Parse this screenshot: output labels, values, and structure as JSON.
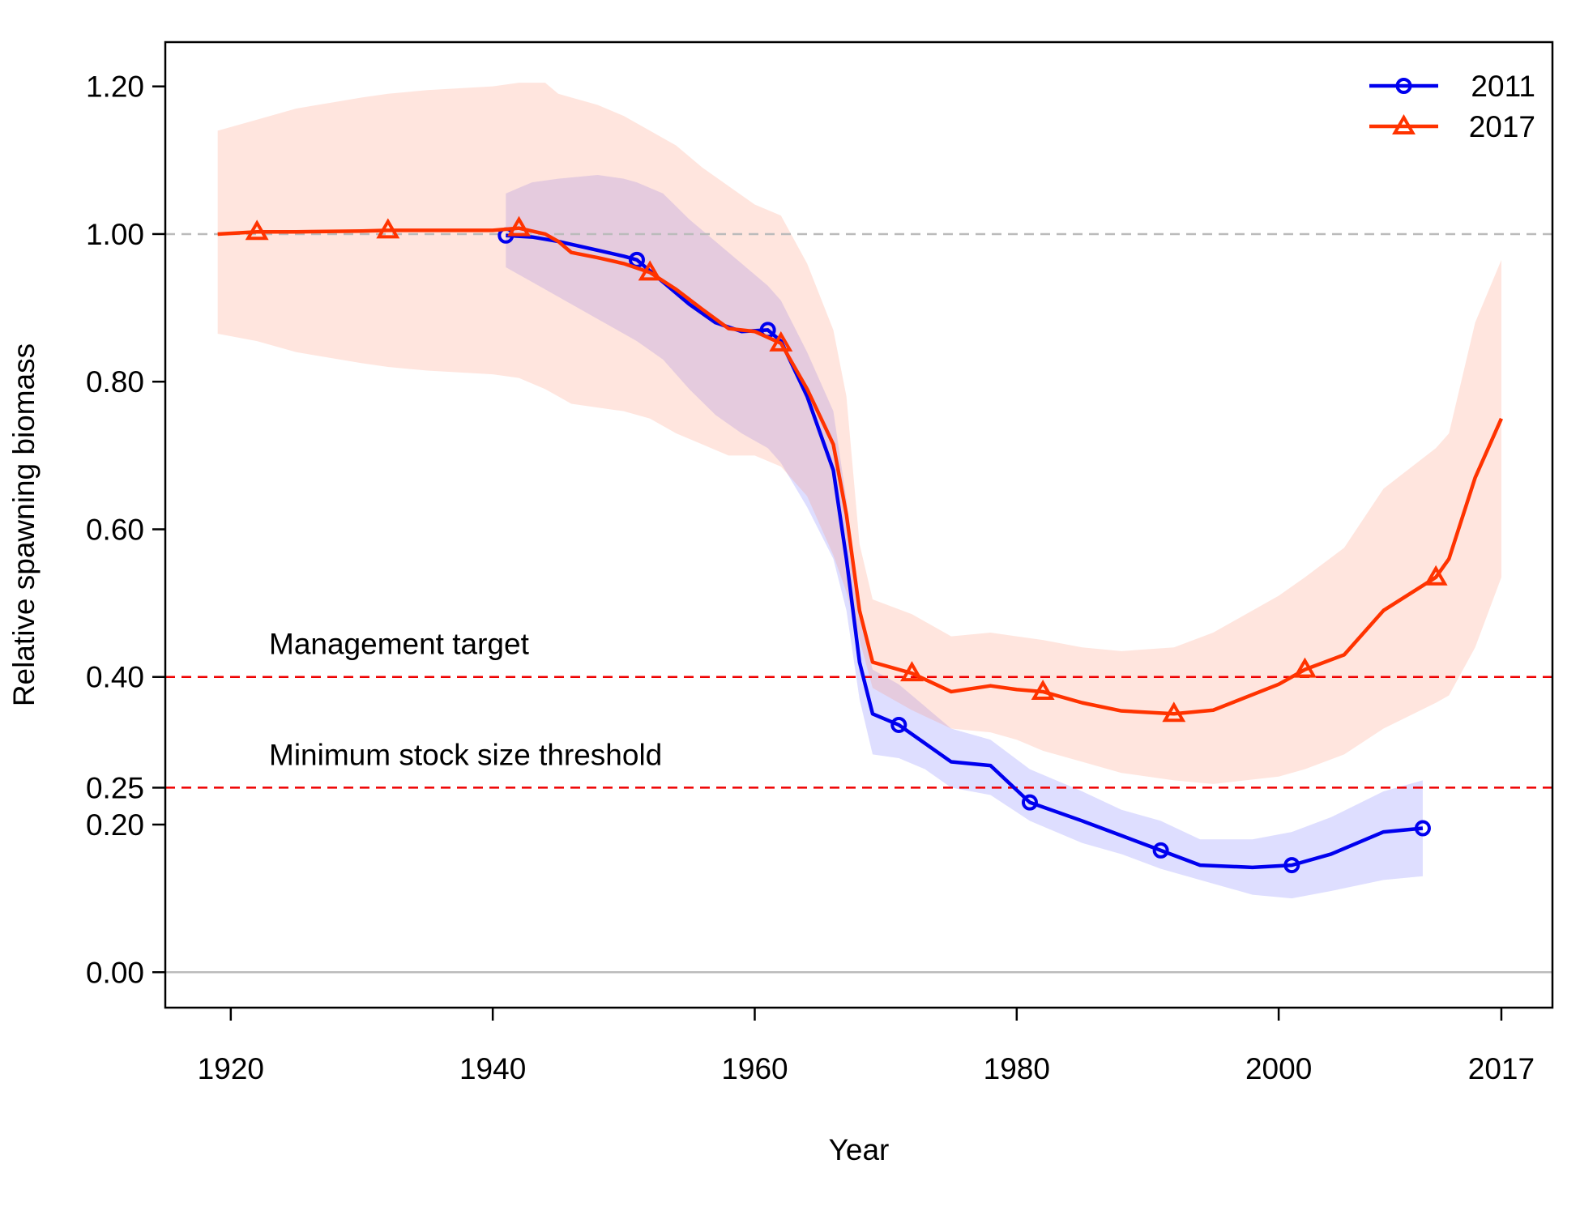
{
  "chart_data": {
    "type": "line",
    "x_label": "Year",
    "y_label": "Relative spawning biomass",
    "xlim": [
      1915,
      2020.9
    ],
    "ylim": [
      -0.048,
      1.26
    ],
    "xticks": [
      1920,
      1940,
      1960,
      1980,
      2000,
      2017
    ],
    "yticks": [
      {
        "value": 0,
        "label": "0.00"
      },
      {
        "value": 0.2,
        "label": "0.20"
      },
      {
        "value": 0.25,
        "label": "0.25"
      },
      {
        "value": 0.4,
        "label": "0.40"
      },
      {
        "value": 0.6,
        "label": "0.60"
      },
      {
        "value": 0.8,
        "label": "0.80"
      },
      {
        "value": 1,
        "label": "1.00"
      },
      {
        "value": 1.2,
        "label": "1.20"
      }
    ],
    "legend_position": "top-right",
    "hlines": [
      {
        "value": 1,
        "color": "#bbbbbb",
        "dashed": true
      },
      {
        "value": 0.4,
        "color": "#ee0000",
        "dashed": true,
        "label": "Management target"
      },
      {
        "value": 0.25,
        "color": "#ee0000",
        "dashed": true,
        "label": "Minimum stock size threshold"
      },
      {
        "value": 0,
        "color": "#bbbbbb",
        "dashed": false
      }
    ],
    "series": [
      {
        "name": "2011",
        "color": "#0000ee",
        "band_color": "#6b6bff",
        "marker": "circle",
        "x": [
          1941,
          1943,
          1945,
          1948,
          1950,
          1951,
          1953,
          1955,
          1957,
          1959,
          1961,
          1962,
          1964,
          1966,
          1967,
          1968,
          1969,
          1971,
          1973,
          1975,
          1978,
          1981,
          1985,
          1988,
          1991,
          1994,
          1998,
          2001,
          2004,
          2008,
          2011
        ],
        "values": [
          0.998,
          0.996,
          0.99,
          0.978,
          0.97,
          0.965,
          0.935,
          0.905,
          0.88,
          0.868,
          0.87,
          0.855,
          0.78,
          0.68,
          0.56,
          0.42,
          0.35,
          0.335,
          0.31,
          0.285,
          0.28,
          0.23,
          0.205,
          0.185,
          0.165,
          0.145,
          0.142,
          0.145,
          0.16,
          0.19,
          0.195
        ],
        "lower": [
          0.955,
          0.935,
          0.915,
          0.885,
          0.865,
          0.855,
          0.83,
          0.79,
          0.755,
          0.73,
          0.71,
          0.69,
          0.63,
          0.56,
          0.49,
          0.37,
          0.295,
          0.29,
          0.275,
          0.25,
          0.24,
          0.205,
          0.175,
          0.16,
          0.14,
          0.125,
          0.105,
          0.1,
          0.11,
          0.125,
          0.13
        ],
        "upper": [
          1.055,
          1.07,
          1.075,
          1.08,
          1.075,
          1.07,
          1.055,
          1.02,
          0.99,
          0.96,
          0.93,
          0.91,
          0.84,
          0.76,
          0.64,
          0.48,
          0.41,
          0.39,
          0.36,
          0.33,
          0.315,
          0.275,
          0.245,
          0.22,
          0.205,
          0.18,
          0.18,
          0.19,
          0.21,
          0.245,
          0.26
        ]
      },
      {
        "name": "2017",
        "color": "#ff3300",
        "band_color": "#ff8a6a",
        "marker": "triangle",
        "x": [
          1919,
          1922,
          1925,
          1930,
          1932,
          1935,
          1940,
          1942,
          1944,
          1945,
          1946,
          1948,
          1950,
          1952,
          1954,
          1956,
          1958,
          1960,
          1962,
          1964,
          1966,
          1967,
          1968,
          1969,
          1972,
          1975,
          1978,
          1980,
          1982,
          1985,
          1988,
          1992,
          1995,
          2000,
          2002,
          2005,
          2008,
          2012,
          2013,
          2015,
          2017
        ],
        "values": [
          1.0,
          1.003,
          1.003,
          1.004,
          1.005,
          1.005,
          1.005,
          1.008,
          1.0,
          0.99,
          0.975,
          0.968,
          0.96,
          0.948,
          0.925,
          0.898,
          0.872,
          0.868,
          0.852,
          0.79,
          0.715,
          0.62,
          0.49,
          0.42,
          0.405,
          0.38,
          0.388,
          0.383,
          0.38,
          0.365,
          0.354,
          0.35,
          0.355,
          0.39,
          0.41,
          0.43,
          0.49,
          0.535,
          0.56,
          0.67,
          0.75
        ],
        "lower": [
          0.865,
          0.855,
          0.84,
          0.825,
          0.82,
          0.815,
          0.81,
          0.805,
          0.79,
          0.78,
          0.77,
          0.765,
          0.76,
          0.75,
          0.73,
          0.715,
          0.7,
          0.7,
          0.685,
          0.645,
          0.565,
          0.515,
          0.45,
          0.385,
          0.355,
          0.33,
          0.325,
          0.315,
          0.3,
          0.285,
          0.27,
          0.26,
          0.255,
          0.265,
          0.275,
          0.295,
          0.33,
          0.365,
          0.375,
          0.44,
          0.535
        ],
        "upper": [
          1.14,
          1.155,
          1.17,
          1.185,
          1.19,
          1.195,
          1.2,
          1.205,
          1.205,
          1.19,
          1.185,
          1.175,
          1.16,
          1.14,
          1.12,
          1.09,
          1.065,
          1.04,
          1.025,
          0.96,
          0.87,
          0.78,
          0.58,
          0.505,
          0.485,
          0.455,
          0.46,
          0.455,
          0.45,
          0.44,
          0.435,
          0.44,
          0.46,
          0.51,
          0.535,
          0.575,
          0.655,
          0.71,
          0.73,
          0.88,
          0.965
        ]
      }
    ]
  }
}
